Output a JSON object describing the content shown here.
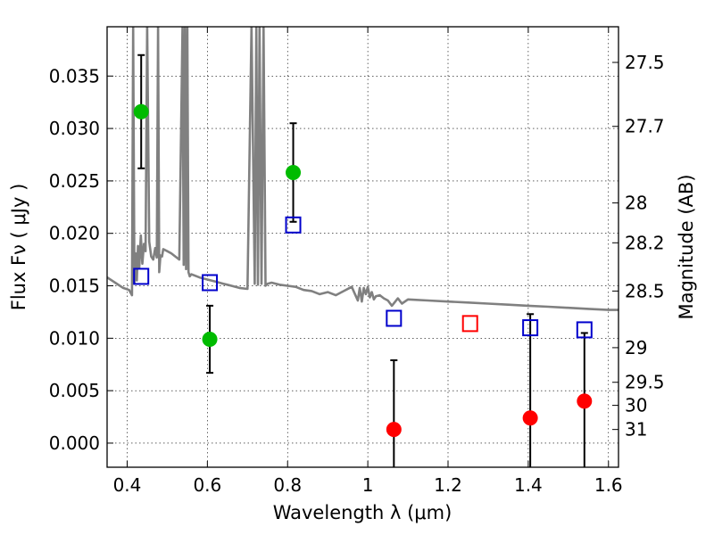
{
  "chart_data": {
    "type": "scatter",
    "title": "",
    "xlabel": "Wavelength  λ (μm)",
    "ylabel": "Flux  Fν  ( μJy )",
    "y2label": "Magnitude (AB)",
    "xlim": [
      0.35,
      1.625
    ],
    "ylim": [
      -0.0023,
      0.0397
    ],
    "grid": true,
    "x_ticks": [
      0.4,
      0.6,
      0.8,
      1.0,
      1.2,
      1.4,
      1.6
    ],
    "x_tick_labels": [
      "0.4",
      "0.6",
      "0.8",
      "1",
      "1.2",
      "1.4",
      "1.6"
    ],
    "y_ticks": [
      0.0,
      0.005,
      0.01,
      0.015,
      0.02,
      0.025,
      0.03,
      0.035
    ],
    "y_tick_labels": [
      "0.000",
      "0.005",
      "0.010",
      "0.015",
      "0.020",
      "0.025",
      "0.030",
      "0.035"
    ],
    "mag_ticks": [
      {
        "label": "27.5",
        "flux": 0.0363
      },
      {
        "label": "27.7",
        "flux": 0.0302
      },
      {
        "label": "28",
        "flux": 0.0229
      },
      {
        "label": "28.2",
        "flux": 0.0191
      },
      {
        "label": "28.5",
        "flux": 0.0145
      },
      {
        "label": "29",
        "flux": 0.0091
      },
      {
        "label": "29.5",
        "flux": 0.0058
      },
      {
        "label": "30",
        "flux": 0.0036
      },
      {
        "label": "31",
        "flux": 0.0013
      }
    ],
    "series": [
      {
        "marker": "circle",
        "color": "#00bb00",
        "points": [
          {
            "x": 0.435,
            "y": 0.0316,
            "err": 0.0054
          },
          {
            "x": 0.606,
            "y": 0.0099,
            "err": 0.0032
          },
          {
            "x": 0.814,
            "y": 0.0258,
            "err": 0.0047
          }
        ]
      },
      {
        "marker": "circle",
        "color": "#ff0000",
        "points": [
          {
            "x": 1.065,
            "y": 0.0013,
            "err": 0.0066
          },
          {
            "x": 1.405,
            "y": 0.0024,
            "err": 0.0099
          },
          {
            "x": 1.54,
            "y": 0.004,
            "err": 0.0065
          }
        ]
      },
      {
        "marker": "open-square",
        "color": "#0000cc",
        "points": [
          {
            "x": 0.435,
            "y": 0.0159
          },
          {
            "x": 0.606,
            "y": 0.0153
          },
          {
            "x": 0.814,
            "y": 0.0208
          },
          {
            "x": 1.065,
            "y": 0.0119
          },
          {
            "x": 1.405,
            "y": 0.011
          },
          {
            "x": 1.54,
            "y": 0.0108
          }
        ]
      },
      {
        "marker": "open-square",
        "color": "#ff0000",
        "points": [
          {
            "x": 1.255,
            "y": 0.0114
          }
        ]
      },
      {
        "type": "line",
        "color": "#808080",
        "x": [
          0.35,
          0.37,
          0.39,
          0.405,
          0.412,
          0.415,
          0.418,
          0.421,
          0.424,
          0.427,
          0.43,
          0.434,
          0.438,
          0.442,
          0.446,
          0.45,
          0.455,
          0.46,
          0.465,
          0.47,
          0.474,
          0.477,
          0.48,
          0.483,
          0.487,
          0.49,
          0.5,
          0.51,
          0.52,
          0.53,
          0.538,
          0.541,
          0.544,
          0.547,
          0.55,
          0.553,
          0.556,
          0.56,
          0.58,
          0.6,
          0.62,
          0.64,
          0.66,
          0.68,
          0.7,
          0.71,
          0.718,
          0.722,
          0.726,
          0.73,
          0.735,
          0.74,
          0.745,
          0.75,
          0.76,
          0.78,
          0.8,
          0.82,
          0.84,
          0.86,
          0.88,
          0.9,
          0.92,
          0.94,
          0.96,
          0.975,
          0.98,
          0.985,
          0.99,
          0.995,
          1.0,
          1.005,
          1.01,
          1.015,
          1.02,
          1.03,
          1.04,
          1.05,
          1.06,
          1.075,
          1.085,
          1.1,
          1.15,
          1.2,
          1.25,
          1.3,
          1.35,
          1.4,
          1.45,
          1.5,
          1.55,
          1.6,
          1.625
        ],
        "y": [
          0.0158,
          0.0153,
          0.0148,
          0.0146,
          0.0141,
          0.0397,
          0.0152,
          0.0181,
          0.0155,
          0.0188,
          0.0167,
          0.0198,
          0.0171,
          0.019,
          0.0183,
          0.0397,
          0.0192,
          0.0178,
          0.0175,
          0.0186,
          0.0177,
          0.0397,
          0.0163,
          0.0179,
          0.0178,
          0.0185,
          0.0183,
          0.0181,
          0.0178,
          0.0175,
          0.0397,
          0.017,
          0.0397,
          0.0166,
          0.0397,
          0.0163,
          0.0159,
          0.0161,
          0.0158,
          0.0156,
          0.0154,
          0.0152,
          0.015,
          0.0148,
          0.0147,
          0.0397,
          0.0152,
          0.0397,
          0.0151,
          0.0397,
          0.0152,
          0.0397,
          0.015,
          0.0152,
          0.0153,
          0.0151,
          0.015,
          0.0149,
          0.0146,
          0.0145,
          0.0142,
          0.0144,
          0.0141,
          0.0145,
          0.0149,
          0.0136,
          0.0148,
          0.0135,
          0.0148,
          0.0142,
          0.0149,
          0.0139,
          0.0144,
          0.0137,
          0.014,
          0.0141,
          0.0138,
          0.0136,
          0.0131,
          0.0138,
          0.0133,
          0.0137,
          0.0136,
          0.0135,
          0.0134,
          0.0133,
          0.0132,
          0.0131,
          0.013,
          0.0129,
          0.0128,
          0.0127,
          0.0127
        ]
      }
    ]
  }
}
